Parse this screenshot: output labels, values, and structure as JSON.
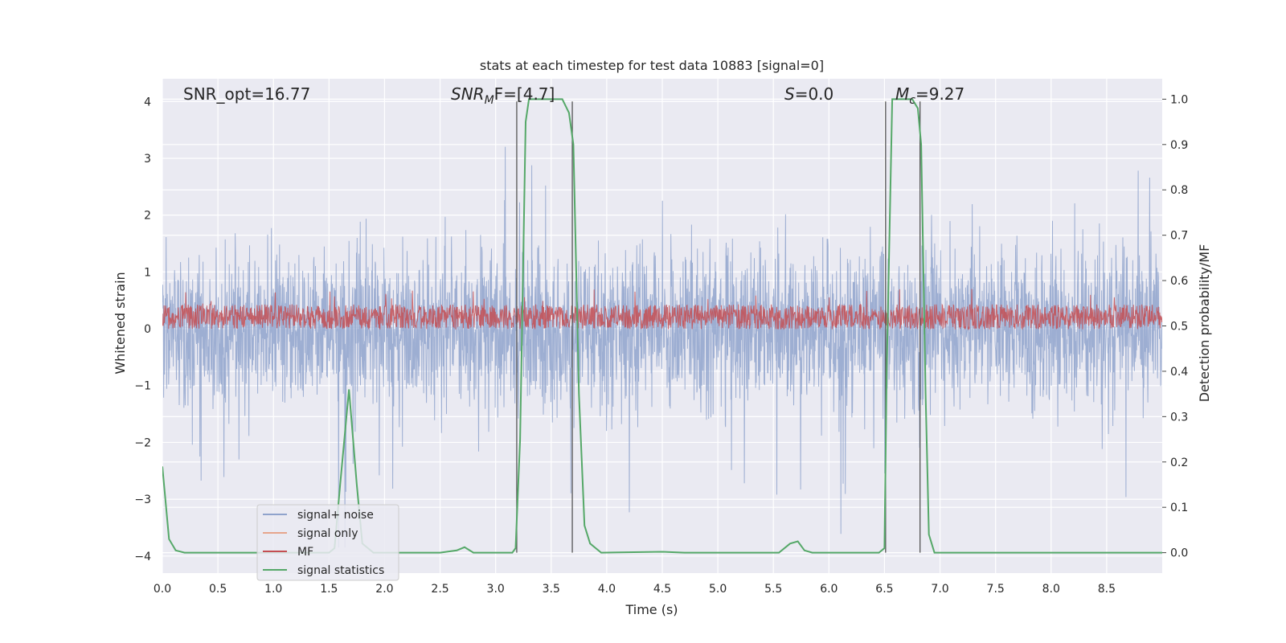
{
  "chart_data": {
    "type": "line",
    "title": "stats at each timestep for test data 10883 [signal=0]",
    "xlabel": "Time (s)",
    "ylabel": "Whitened strain",
    "y2label": "Detection probability/MF",
    "xlim": [
      0.0,
      9.0
    ],
    "ylim": [
      -4.3,
      4.4
    ],
    "y2lim": [
      -0.045,
      1.045
    ],
    "xticks": [
      "0.0",
      "0.5",
      "1.0",
      "1.5",
      "2.0",
      "2.5",
      "3.0",
      "3.5",
      "4.0",
      "4.5",
      "5.0",
      "5.5",
      "6.0",
      "6.5",
      "7.0",
      "7.5",
      "8.0",
      "8.5"
    ],
    "yticks": [
      "4",
      "3",
      "2",
      "1",
      "0",
      "−1",
      "−2",
      "−3",
      "−4"
    ],
    "y2ticks": [
      "0.0",
      "0.1",
      "0.2",
      "0.3",
      "0.4",
      "0.5",
      "0.6",
      "0.7",
      "0.8",
      "0.9",
      "1.0"
    ],
    "grid": true,
    "legend_position": "lower-left",
    "annotations": {
      "snr_opt": "SNR_opt=16.77",
      "snr_mf_label": "SNR",
      "snr_mf_sub": "M",
      "snr_mf_rest": "F=[4.7]",
      "s_label": "S",
      "s_rest": "=0.0",
      "mc_label": "M",
      "mc_sub": "c",
      "mc_rest": "=9.27"
    },
    "vertical_lines_x": [
      3.19,
      3.69,
      6.51,
      6.82
    ],
    "colors": {
      "plot_bg": "#eaeaf2",
      "grid": "#ffffff",
      "noise": "#8fa3cc",
      "signal_only": "#e6a58c",
      "mf": "#c44e52",
      "stats": "#55a868",
      "vline": "#555555"
    },
    "series": [
      {
        "name": "signal+ noise",
        "axis": "left",
        "note": "dense noise band, approx ±1.5 with spikes to ±3.5"
      },
      {
        "name": "signal only",
        "axis": "left",
        "values": "≈0 throughout"
      },
      {
        "name": "MF",
        "axis": "right",
        "note": "noisy band ≈0.50–0.57"
      },
      {
        "name": "signal statistics",
        "axis": "right",
        "x": [
          0.0,
          0.06,
          0.12,
          0.2,
          0.5,
          1.0,
          1.5,
          1.55,
          1.6,
          1.68,
          1.75,
          1.8,
          1.9,
          2.5,
          2.65,
          2.72,
          2.8,
          3.15,
          3.18,
          3.22,
          3.27,
          3.3,
          3.5,
          3.6,
          3.66,
          3.7,
          3.75,
          3.8,
          3.85,
          3.95,
          4.5,
          4.7,
          5.0,
          5.55,
          5.65,
          5.72,
          5.78,
          5.85,
          6.0,
          6.45,
          6.5,
          6.52,
          6.57,
          6.6,
          6.75,
          6.8,
          6.83,
          6.87,
          6.9,
          6.95,
          7.0,
          8.0,
          9.0
        ],
        "y": [
          0.19,
          0.03,
          0.005,
          0.0,
          0.0,
          0.0,
          0.0,
          0.01,
          0.15,
          0.36,
          0.15,
          0.02,
          0.0,
          0.0,
          0.005,
          0.012,
          0.0,
          0.0,
          0.01,
          0.25,
          0.95,
          1.0,
          1.0,
          1.0,
          0.97,
          0.9,
          0.35,
          0.06,
          0.02,
          0.0,
          0.002,
          0.0,
          0.0,
          0.0,
          0.02,
          0.025,
          0.005,
          0.0,
          0.0,
          0.0,
          0.01,
          0.4,
          1.0,
          1.0,
          1.0,
          0.98,
          0.9,
          0.35,
          0.04,
          0.0,
          0.0,
          0.0,
          0.0
        ]
      }
    ]
  }
}
